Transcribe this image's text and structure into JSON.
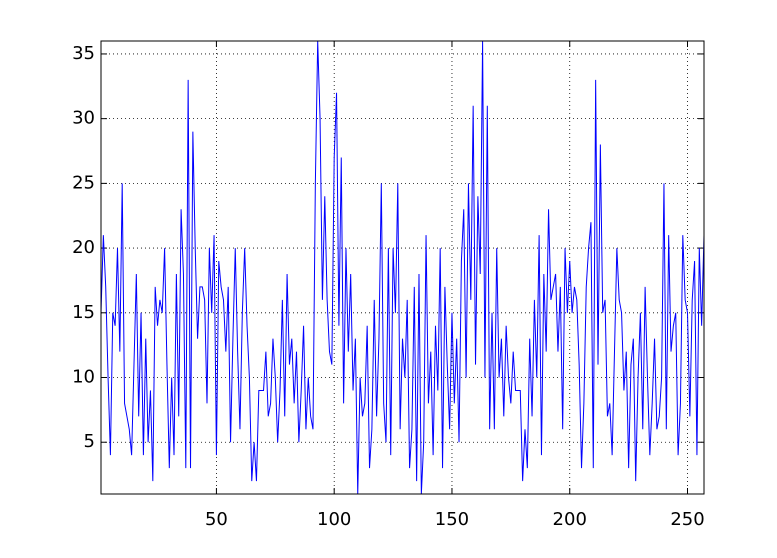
{
  "chart_data": {
    "type": "line",
    "x": [
      1,
      2,
      3,
      4,
      5,
      6,
      7,
      8,
      9,
      10,
      11,
      12,
      13,
      14,
      15,
      16,
      17,
      18,
      19,
      20,
      21,
      22,
      23,
      24,
      25,
      26,
      27,
      28,
      29,
      30,
      31,
      32,
      33,
      34,
      35,
      36,
      37,
      38,
      39,
      40,
      41,
      42,
      43,
      44,
      45,
      46,
      47,
      48,
      49,
      50,
      51,
      52,
      53,
      54,
      55,
      56,
      57,
      58,
      59,
      60,
      61,
      62,
      63,
      64,
      65,
      66,
      67,
      68,
      69,
      70,
      71,
      72,
      73,
      74,
      75,
      76,
      77,
      78,
      79,
      80,
      81,
      82,
      83,
      84,
      85,
      86,
      87,
      88,
      89,
      90,
      91,
      92,
      93,
      94,
      95,
      96,
      97,
      98,
      99,
      100,
      101,
      102,
      103,
      104,
      105,
      106,
      107,
      108,
      109,
      110,
      111,
      112,
      113,
      114,
      115,
      116,
      117,
      118,
      119,
      120,
      121,
      122,
      123,
      124,
      125,
      126,
      127,
      128,
      129,
      130,
      131,
      132,
      133,
      134,
      135,
      136,
      137,
      138,
      139,
      140,
      141,
      142,
      143,
      144,
      145,
      146,
      147,
      148,
      149,
      150,
      151,
      152,
      153,
      154,
      155,
      156,
      157,
      158,
      159,
      160,
      161,
      162,
      163,
      164,
      165,
      166,
      167,
      168,
      169,
      170,
      171,
      172,
      173,
      174,
      175,
      176,
      177,
      178,
      179,
      180,
      181,
      182,
      183,
      184,
      185,
      186,
      187,
      188,
      189,
      190,
      191,
      192,
      193,
      194,
      195,
      196,
      197,
      198,
      199,
      200,
      201,
      202,
      203,
      204,
      205,
      206,
      207,
      208,
      209,
      210,
      211,
      212,
      213,
      214,
      215,
      216,
      217,
      218,
      219,
      220,
      221,
      222,
      223,
      224,
      225,
      226,
      227,
      228,
      229,
      230,
      231,
      232,
      233,
      234,
      235,
      236,
      237,
      238,
      239,
      240,
      241,
      242,
      243,
      244,
      245,
      246,
      247,
      248,
      249,
      250,
      251,
      252,
      253,
      254,
      255,
      256,
      257
    ],
    "values": [
      15,
      21,
      17,
      10,
      4,
      15,
      14,
      20,
      12,
      25,
      8,
      7,
      6,
      4,
      11,
      18,
      7,
      15,
      4,
      13,
      5,
      9,
      2,
      17,
      14,
      16,
      15,
      20,
      11,
      3,
      10,
      4,
      18,
      7,
      23,
      18,
      3,
      33,
      3,
      29,
      20,
      13,
      17,
      17,
      16,
      8,
      20,
      15,
      21,
      4,
      19,
      17,
      16,
      12,
      17,
      5,
      13,
      20,
      12,
      6,
      15,
      20,
      14,
      10,
      2,
      5,
      2,
      9,
      9,
      9,
      12,
      7,
      8,
      13,
      10,
      5,
      9,
      16,
      7,
      18,
      11,
      13,
      8,
      12,
      5,
      9,
      14,
      6,
      10,
      7,
      6,
      25,
      36,
      30,
      16,
      24,
      16,
      12,
      11,
      27,
      32,
      14,
      27,
      8,
      20,
      12,
      18,
      9,
      13,
      1,
      10,
      7,
      8,
      14,
      3,
      6,
      16,
      7,
      13,
      25,
      8,
      5,
      20,
      4,
      20,
      15,
      25,
      6,
      13,
      10,
      16,
      3,
      6,
      17,
      2,
      18,
      1,
      5,
      21,
      8,
      12,
      4,
      14,
      9,
      20,
      3,
      17,
      11,
      6,
      15,
      8,
      13,
      5,
      19,
      23,
      10,
      25,
      16,
      31,
      11,
      24,
      18,
      36,
      10,
      31,
      6,
      15,
      6,
      20,
      10,
      13,
      7,
      14,
      10,
      8,
      12,
      9,
      9,
      9,
      2,
      6,
      3,
      13,
      7,
      16,
      10,
      21,
      4,
      18,
      12,
      23,
      16,
      17,
      18,
      12,
      17,
      6,
      20,
      15,
      19,
      15,
      17,
      16,
      11,
      3,
      8,
      17,
      20,
      22,
      3,
      33,
      11,
      28,
      15,
      16,
      7,
      8,
      4,
      12,
      20,
      16,
      15,
      9,
      12,
      3,
      11,
      13,
      2,
      10,
      15,
      6,
      17,
      10,
      4,
      8,
      13,
      6,
      7,
      10,
      25,
      6,
      21,
      12,
      14,
      15,
      4,
      8,
      21,
      16,
      15,
      7,
      16,
      19,
      4,
      20,
      14,
      21
    ],
    "color": "#0000ff",
    "xlim": [
      1,
      257
    ],
    "xticks": [
      50,
      100,
      150,
      200,
      250
    ],
    "ylim": [
      1,
      36
    ],
    "yticks": [
      5,
      10,
      15,
      20,
      25,
      30,
      35
    ],
    "grid": true
  }
}
